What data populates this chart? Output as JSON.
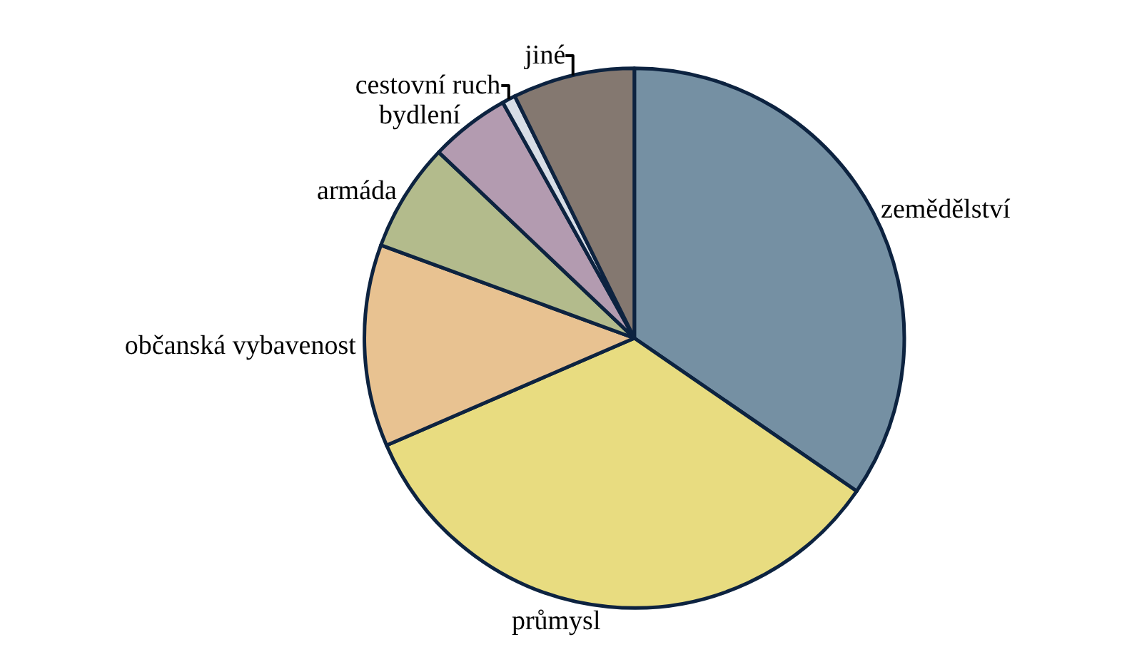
{
  "chart_data": {
    "type": "pie",
    "categories": [
      "zemědělství",
      "průmysl",
      "občanská vybavenost",
      "armáda",
      "bydlení",
      "cestovní ruch",
      "jiné"
    ],
    "values": [
      34.6,
      33.9,
      12.1,
      6.5,
      4.8,
      0.8,
      7.3
    ],
    "colors": [
      "#7590a3",
      "#e8dc80",
      "#e8c291",
      "#b3bb8c",
      "#b39bb0",
      "#d7dde6",
      "#847870"
    ],
    "legend": false
  }
}
